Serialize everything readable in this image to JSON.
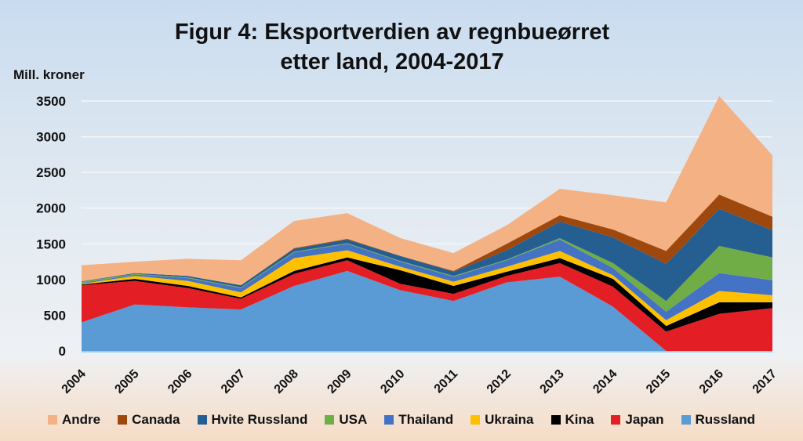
{
  "chart_data": {
    "type": "area",
    "stacked": true,
    "title_line1": "Figur 4: Eksportverdien av regnbueørret",
    "title_line2": "etter land, 2004-2017",
    "xlabel": "",
    "ylabel": "Mill. kroner",
    "ylim": [
      0,
      3500
    ],
    "yticks": [
      0,
      500,
      1000,
      1500,
      2000,
      2500,
      3000,
      3500
    ],
    "grid": true,
    "legend_position": "bottom",
    "x": [
      "2004",
      "2005",
      "2006",
      "2007",
      "2008",
      "2009",
      "2010",
      "2011",
      "2012",
      "2013",
      "2014",
      "2015",
      "2016",
      "2017"
    ],
    "series": [
      {
        "name": "Russland",
        "color": "#5b9bd5",
        "values": [
          400,
          650,
          610,
          580,
          910,
          1120,
          850,
          700,
          960,
          1040,
          620,
          0,
          0,
          0
        ]
      },
      {
        "name": "Japan",
        "color": "#e31e24",
        "values": [
          520,
          330,
          270,
          150,
          170,
          150,
          90,
          100,
          90,
          190,
          280,
          270,
          520,
          600
        ]
      },
      {
        "name": "Kina",
        "color": "#000000",
        "values": [
          10,
          30,
          30,
          20,
          40,
          40,
          190,
          110,
          60,
          70,
          110,
          80,
          160,
          80
        ]
      },
      {
        "name": "Ukraina",
        "color": "#ffc000",
        "values": [
          10,
          40,
          70,
          70,
          180,
          100,
          50,
          60,
          70,
          100,
          50,
          80,
          160,
          100
        ]
      },
      {
        "name": "Thailand",
        "color": "#4472c4",
        "values": [
          10,
          20,
          40,
          60,
          80,
          90,
          70,
          70,
          90,
          160,
          100,
          120,
          250,
          210
        ]
      },
      {
        "name": "USA",
        "color": "#70ad47",
        "values": [
          20,
          10,
          10,
          10,
          10,
          10,
          10,
          10,
          10,
          20,
          70,
          150,
          380,
          320
        ]
      },
      {
        "name": "Hvite Russland",
        "color": "#255e91",
        "values": [
          5,
          10,
          20,
          30,
          40,
          50,
          70,
          60,
          130,
          230,
          360,
          520,
          520,
          380
        ]
      },
      {
        "name": "Canada",
        "color": "#9e480e",
        "values": [
          0,
          0,
          0,
          0,
          10,
          10,
          0,
          10,
          90,
          90,
          110,
          180,
          200,
          190
        ]
      },
      {
        "name": "Andre",
        "color": "#f4b183",
        "values": [
          225,
          160,
          240,
          350,
          380,
          360,
          250,
          250,
          260,
          370,
          480,
          680,
          1380,
          860
        ]
      }
    ],
    "legend_order": [
      "Andre",
      "Canada",
      "Hvite Russland",
      "USA",
      "Thailand",
      "Ukraina",
      "Kina",
      "Japan",
      "Russland"
    ]
  }
}
